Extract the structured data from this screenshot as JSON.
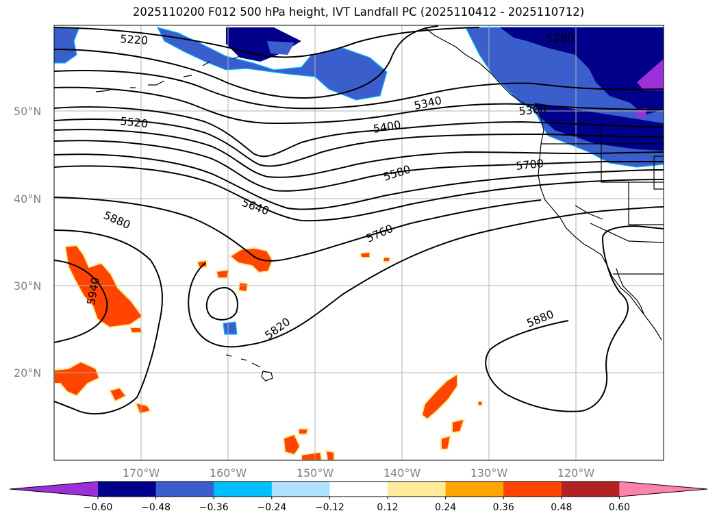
{
  "title": "2025110200 F012 500 hPa height, IVT Landfall PC (2025110412 - 2025110712)",
  "lat_labels": [
    "50°N",
    "40°N",
    "30°N",
    "20°N"
  ],
  "lon_labels": [
    "170°W",
    "160°W",
    "150°W",
    "140°W",
    "130°W",
    "120°W"
  ],
  "contour_labels": [
    "5220",
    "5280",
    "5340",
    "5360",
    "5400",
    "5520",
    "5580",
    "5640",
    "5700",
    "5760",
    "5820",
    "5880",
    "5880",
    "5940"
  ],
  "colorbar": {
    "tick_labels": [
      "−0.60",
      "−0.48",
      "−0.36",
      "−0.24",
      "−0.12",
      "0.12",
      "0.24",
      "0.36",
      "0.48",
      "0.60"
    ],
    "colors": [
      "#9b30d9",
      "#00008b",
      "#3a5fcd",
      "#00bfff",
      "#b0e2ff",
      "#ffffff",
      "#ffeb99",
      "#ffa500",
      "#ff4500",
      "#b22222",
      "#ff82ab"
    ]
  },
  "colors": {
    "contour": "#000000",
    "grid": "#b0b0b0",
    "coast": "#000000"
  }
}
